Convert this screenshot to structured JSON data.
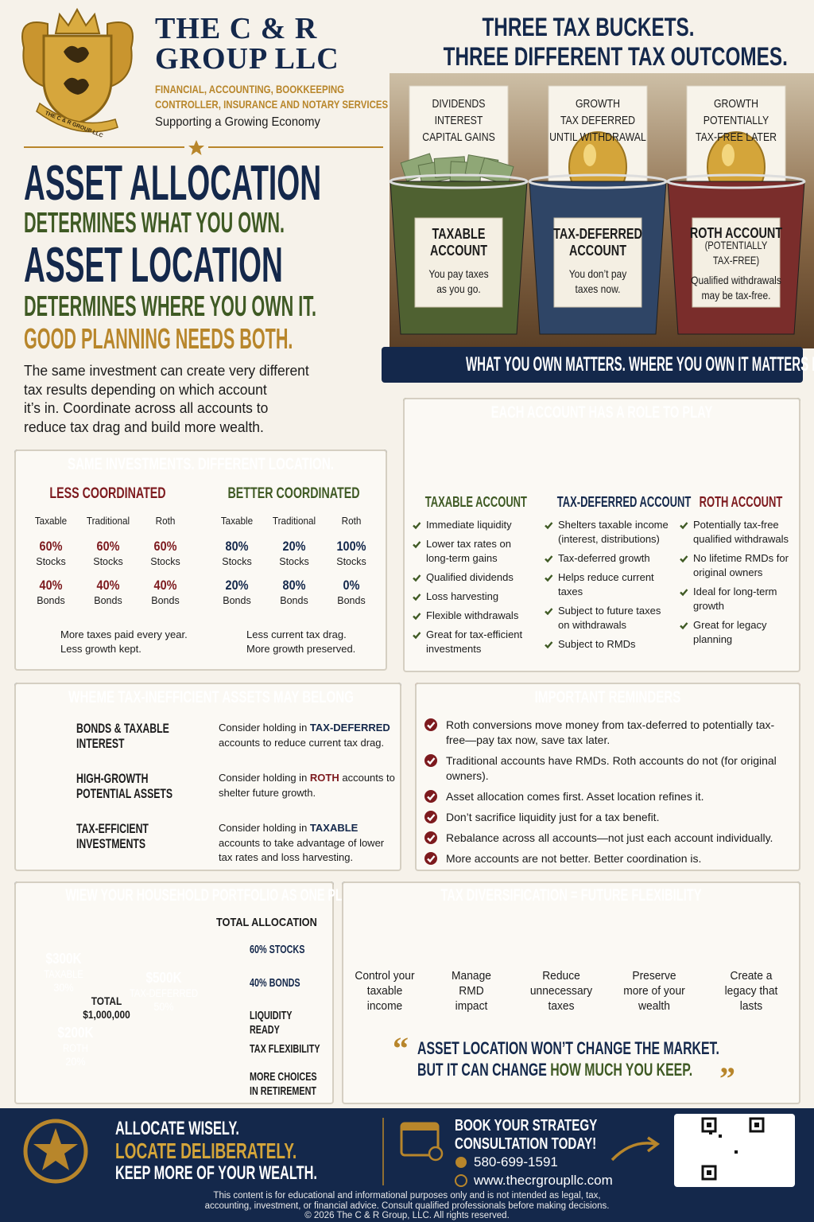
{
  "header": {
    "company": [
      "THE C & R",
      "GROUP LLC"
    ],
    "services": [
      "FINANCIAL, ACCOUNTING, BOOKKEEPING",
      "CONTROLLER, INSURANCE AND NOTARY SERVICES"
    ],
    "tagline": "Supporting a Growing Economy",
    "seal_text": "THE C & R GROUP LLC"
  },
  "hero": {
    "lines": [
      "ASSET ALLOCATION",
      "DETERMINES WHAT YOU OWN.",
      "ASSET LOCATION",
      "DETERMINES WHERE YOU OWN IT.",
      "GOOD PLANNING NEEDS BOTH."
    ],
    "body": [
      "The same investment can create very different",
      "tax results depending on which account",
      "it’s in. Coordinate across all accounts to",
      "reduce tax drag and build more wealth."
    ]
  },
  "buckets": {
    "title": [
      "THREE TAX BUCKETS.",
      "THREE DIFFERENT TAX OUTCOMES."
    ],
    "items": [
      {
        "card": [
          "DIVIDENDS",
          "INTEREST",
          "CAPITAL GAINS"
        ],
        "account": [
          "TAXABLE",
          "ACCOUNT"
        ],
        "note": [
          "You pay taxes",
          "as you go."
        ]
      },
      {
        "card": [
          "GROWTH",
          "TAX DEFERRED",
          "UNTIL WITHDRAWAL"
        ],
        "account": [
          "TAX-DEFERRED",
          "ACCOUNT"
        ],
        "note": [
          "You don’t pay",
          "taxes now."
        ]
      },
      {
        "card": [
          "GROWTH",
          "POTENTIALLY",
          "TAX-FREE LATER"
        ],
        "account": [
          "ROTH ACCOUNT",
          "(POTENTIALLY",
          "TAX-FREE)"
        ],
        "note": [
          "Qualified withdrawals",
          "may be tax-free."
        ]
      }
    ],
    "banner": "WHAT YOU OWN MATTERS. WHERE YOU OWN IT MATTERS MORE."
  },
  "roles": {
    "title": "EACH ACCOUNT HAS A ROLE TO PLAY",
    "accounts": [
      {
        "name": "TAXABLE ACCOUNT",
        "bullets": [
          "Immediate liquidity",
          "Lower tax rates on long-term gains",
          "Qualified dividends",
          "Loss harvesting",
          "Flexible withdrawals",
          "Great for tax-efficient investments"
        ]
      },
      {
        "name": "TAX-DEFERRED ACCOUNT",
        "bullets": [
          "Shelters taxable income (interest, distributions)",
          "Tax-deferred growth",
          "Helps reduce current taxes",
          "Subject to future taxes on withdrawals",
          "Subject to RMDs"
        ]
      },
      {
        "name": "ROTH ACCOUNT",
        "bullets": [
          "Potentially tax-free qualified withdrawals",
          "No lifetime RMDs for original owners",
          "Ideal for long-term growth",
          "Great for legacy planning"
        ]
      }
    ]
  },
  "comparison": {
    "title": "SAME INVESTMENTS. DIFFERENT LOCATION.",
    "sides": [
      {
        "heading": "LESS COORDINATED",
        "columns": [
          "Taxable",
          "Traditional",
          "Roth"
        ],
        "cells": [
          [
            "60%",
            "Stocks",
            "40%",
            "Bonds"
          ],
          [
            "60%",
            "Stocks",
            "40%",
            "Bonds"
          ],
          [
            "60%",
            "Stocks",
            "40%",
            "Bonds"
          ]
        ],
        "result": [
          "More taxes paid every year.",
          "Less growth kept."
        ]
      },
      {
        "heading": "BETTER COORDINATED",
        "columns": [
          "Taxable",
          "Traditional",
          "Roth"
        ],
        "cells": [
          [
            "80%",
            "Stocks",
            "20%",
            "Bonds"
          ],
          [
            "20%",
            "Stocks",
            "80%",
            "Bonds"
          ],
          [
            "100%",
            "Stocks",
            "0%",
            "Bonds"
          ]
        ],
        "result": [
          "Less current tax drag.",
          "More growth preserved."
        ]
      }
    ]
  },
  "placement": {
    "title": "WHEME TAX-INEFFICIENT ASSETS MAY BELONG",
    "rows": [
      {
        "asset": [
          "BONDS & TAXABLE",
          "INTEREST"
        ],
        "advice": [
          "Consider holding in ",
          "TAX-DEFERRED",
          " accounts to reduce current tax drag."
        ]
      },
      {
        "asset": [
          "HIGH-GROWTH",
          "POTENTIAL ASSETS"
        ],
        "advice": [
          "Consider holding in ",
          "ROTH",
          " accounts to shelter future growth."
        ]
      },
      {
        "asset": [
          "TAX-EFFICIENT",
          "INVESTMENTS"
        ],
        "advice": [
          "Consider holding in ",
          "TAXABLE",
          " accounts to take advantage of lower tax rates and loss harvesting."
        ]
      }
    ]
  },
  "reminders": {
    "title": "IMPORTANT REMINDERS",
    "items": [
      "Roth conversions move money from tax-deferred to potentially tax-free—pay tax now, save tax later.",
      "Traditional accounts have RMDs. Roth accounts do not (for original owners).",
      "Asset allocation comes first. Asset location refines it.",
      "Don’t sacrifice liquidity just for a tax benefit.",
      "Rebalance across all accounts—not just each account individually.",
      "More accounts are not better. Better coordination is."
    ]
  },
  "household": {
    "title": "WIEW YOUR HOUSEHOLD PORTFOLIO AS ONE PLAN",
    "pie": {
      "type": "pie",
      "categories": [
        "TAX-DEFERRED",
        "ROTH",
        "TAXABLE"
      ],
      "values": [
        50,
        20,
        30
      ],
      "value_labels": [
        "50%",
        "20%",
        "30%"
      ],
      "amount_labels": [
        "$500K",
        "$200K",
        "$300K"
      ],
      "colors": [
        "#1d3a6e",
        "#7d1a1e",
        "#3f5a24"
      ],
      "center": [
        "TOTAL",
        "$1,000,000"
      ]
    },
    "allocation": {
      "title": "TOTAL ALLOCATION",
      "items": [
        "60% STOCKS",
        "40% BONDS",
        "LIQUIDITY READY",
        "TAX FLEXIBILITY",
        "MORE CHOICES IN RETIREMENT"
      ]
    }
  },
  "flexibility": {
    "title": "TAX DIVERSIFICATION = FUTURE FLEXIBILITY",
    "steps": [
      [
        "Control your",
        "taxable",
        "income"
      ],
      [
        "Manage",
        "RMD",
        "impact"
      ],
      [
        "Reduce",
        "unnecessary",
        "taxes"
      ],
      [
        "Preserve",
        "more of your",
        "wealth"
      ],
      [
        "Create a",
        "legacy that",
        "lasts"
      ]
    ],
    "quote": {
      "open": "“",
      "line1": "ASSET LOCATION WON’T CHANGE THE MARKET.",
      "line2": "BUT IT CAN CHANGE ",
      "highlight": "HOW MUCH YOU KEEP.",
      "close": "”"
    }
  },
  "footer": {
    "slogan": [
      "ALLOCATE WISELY.",
      "LOCATE DELIBERATELY.",
      "KEEP MORE OF YOUR WEALTH."
    ],
    "cta": [
      "BOOK YOUR STRATEGY",
      "CONSULTATION TODAY!"
    ],
    "phone": "580-699-1591",
    "website": "www.thecrgroupllc.com",
    "disclaimer": [
      "This content is for educational and informational purposes only and is not intended as legal, tax,",
      "accounting, investment, or financial advice. Consult qualified professionals before making decisions.",
      "© 2026 The C & R Group, LLC. All rights reserved."
    ]
  }
}
